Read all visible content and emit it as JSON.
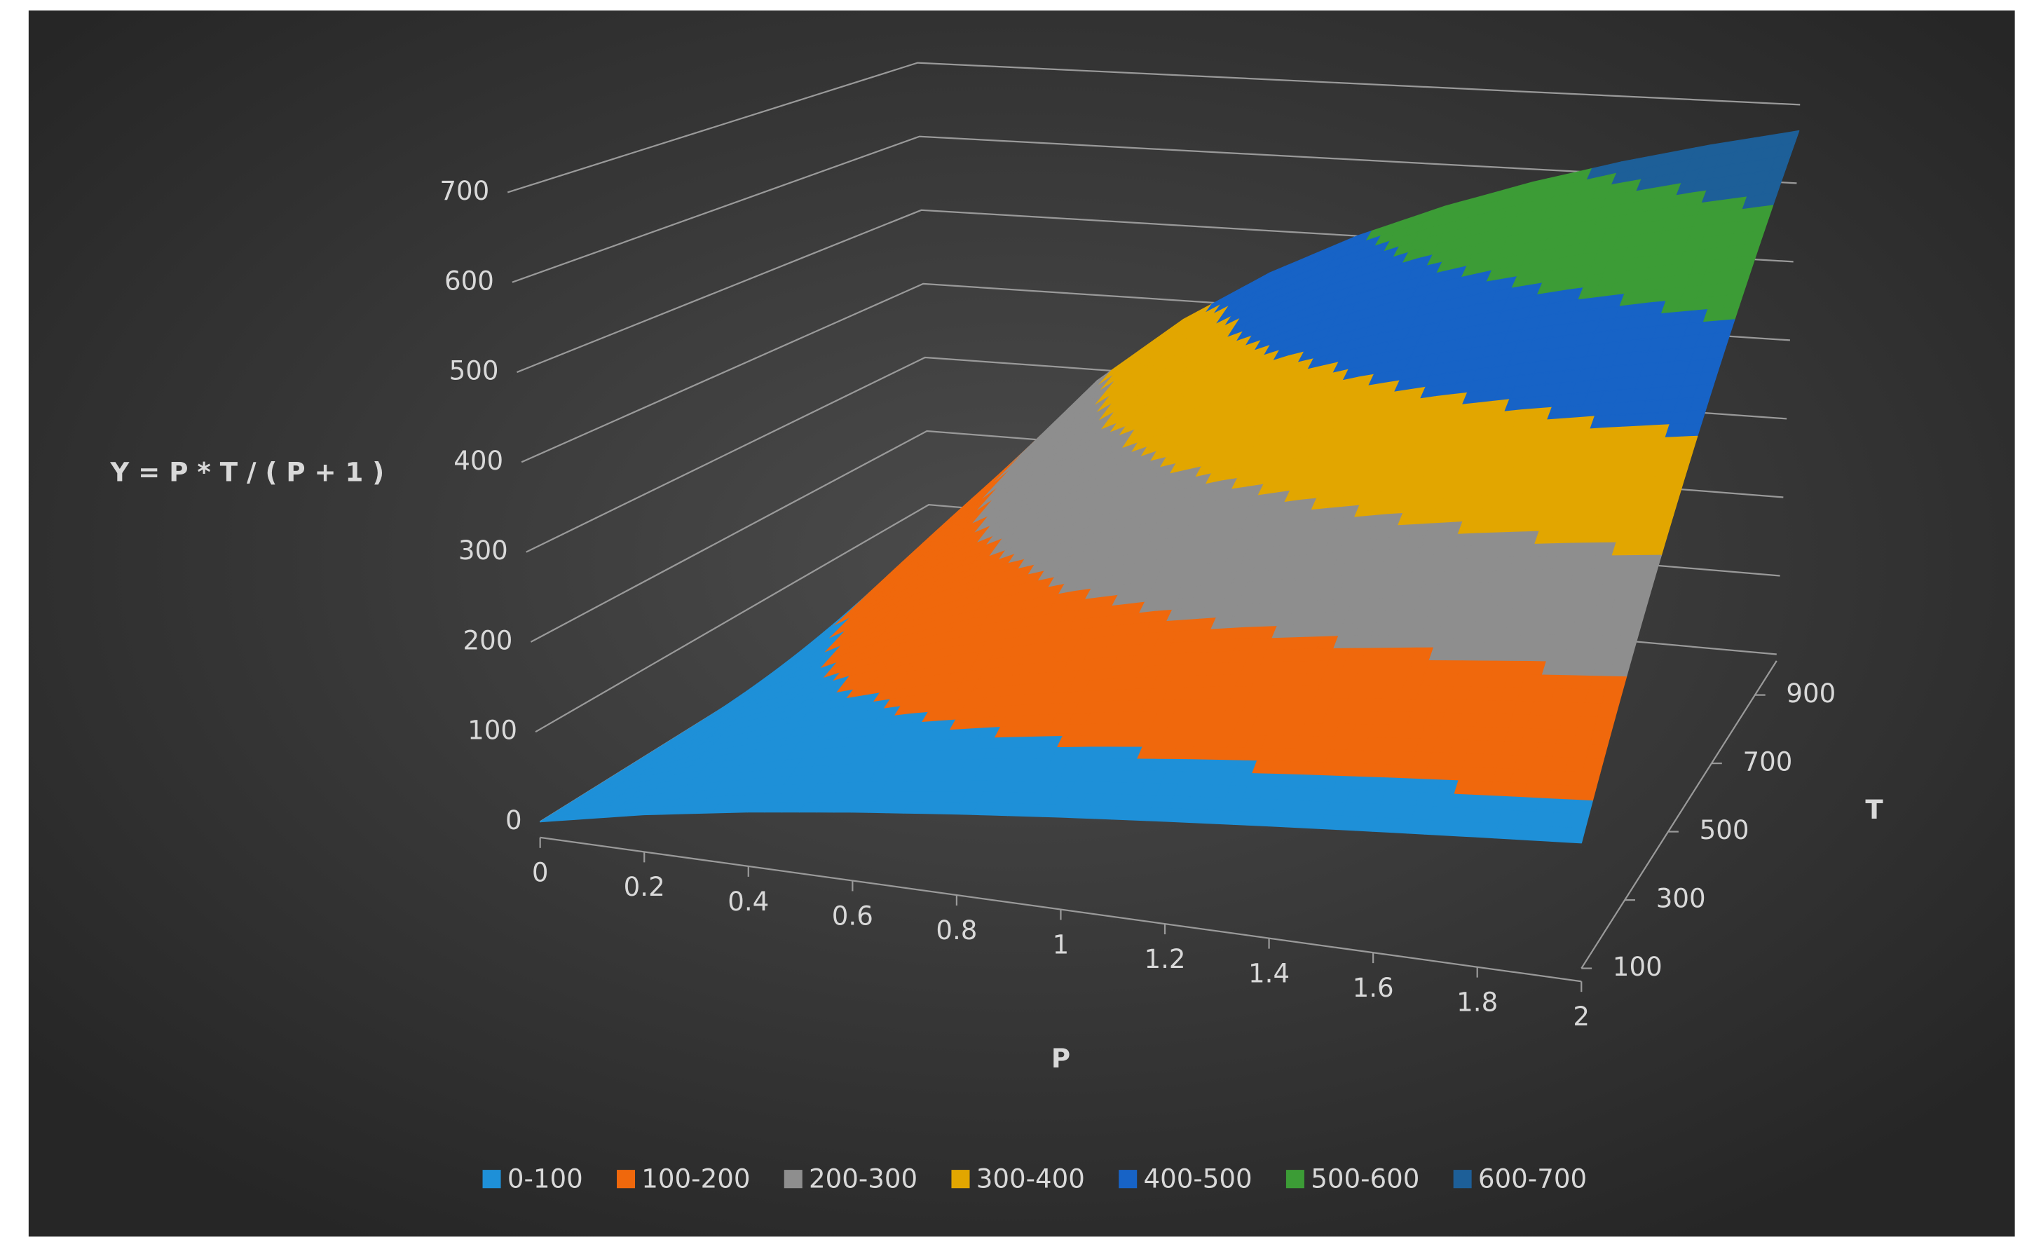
{
  "chart_data": {
    "type": "surface",
    "y_axis_title": "Y = P * T / ( P + 1 )",
    "x_axis_title": "P",
    "depth_axis_title": "T",
    "x": [
      0,
      0.2,
      0.4,
      0.6,
      0.8,
      1,
      1.2,
      1.4,
      1.6,
      1.8,
      2
    ],
    "xticks": [
      0,
      0.2,
      0.4,
      0.6,
      0.8,
      1,
      1.2,
      1.4,
      1.6,
      1.8,
      2
    ],
    "depth_categories": [
      100,
      null,
      300,
      null,
      500,
      null,
      700,
      null,
      900,
      null
    ],
    "z": [
      [
        0,
        16.7,
        28.6,
        37.5,
        44.4,
        50,
        54.5,
        58.3,
        61.5,
        64.3,
        66.7
      ],
      [
        0,
        33.3,
        57.1,
        75,
        88.9,
        100,
        109.1,
        116.7,
        123.1,
        128.6,
        133.3
      ],
      [
        0,
        50,
        85.7,
        112.5,
        133.3,
        150,
        163.6,
        175,
        184.6,
        192.9,
        200
      ],
      [
        0,
        66.7,
        114.3,
        150,
        177.8,
        200,
        218.2,
        233.3,
        246.2,
        257.1,
        266.7
      ],
      [
        0,
        83.3,
        142.9,
        187.5,
        222.2,
        250,
        272.7,
        291.7,
        307.7,
        321.4,
        333.3
      ],
      [
        0,
        100,
        171.4,
        225,
        266.7,
        300,
        327.3,
        350,
        369.2,
        385.7,
        400
      ],
      [
        0,
        116.7,
        200,
        262.5,
        311.1,
        350,
        381.8,
        408.3,
        430.8,
        450,
        466.7
      ],
      [
        0,
        133.3,
        228.6,
        300,
        355.6,
        400,
        436.4,
        466.7,
        492.3,
        514.3,
        533.3
      ],
      [
        0,
        150,
        257.1,
        337.5,
        400,
        450,
        490.9,
        525,
        553.8,
        578.6,
        600
      ],
      [
        0,
        166.7,
        285.7,
        375,
        444.4,
        500,
        545.5,
        583.3,
        615.4,
        642.9,
        666.7
      ]
    ],
    "ylim": [
      0,
      700
    ],
    "yticks": [
      0,
      100,
      200,
      300,
      400,
      500,
      600,
      700
    ],
    "grid": true,
    "legend": "bottom",
    "bands": [
      {
        "name": "0-100",
        "color": "#1e90d8",
        "from": 0,
        "to": 100
      },
      {
        "name": "100-200",
        "color": "#f0680c",
        "from": 100,
        "to": 200
      },
      {
        "name": "200-300",
        "color": "#8e8e8e",
        "from": 200,
        "to": 300
      },
      {
        "name": "300-400",
        "color": "#e2a600",
        "from": 300,
        "to": 400
      },
      {
        "name": "400-500",
        "color": "#1763c6",
        "from": 400,
        "to": 500
      },
      {
        "name": "500-600",
        "color": "#3c9c36",
        "from": 500,
        "to": 600
      },
      {
        "name": "600-700",
        "color": "#1d5f98",
        "from": 600,
        "to": 700
      }
    ]
  }
}
